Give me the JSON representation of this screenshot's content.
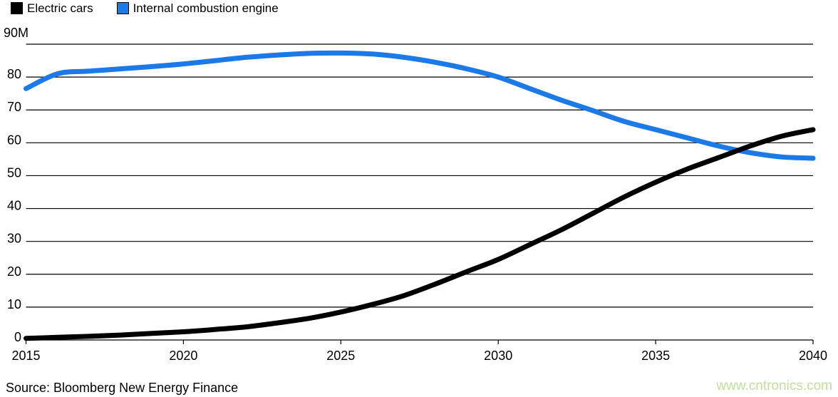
{
  "legend": {
    "items": [
      {
        "label": "Electric cars",
        "color": "#000000"
      },
      {
        "label": "Internal combustion engine",
        "color": "#1b79e8"
      }
    ]
  },
  "chart_data": {
    "type": "line",
    "title": "",
    "x": [
      2015,
      2016,
      2017,
      2018,
      2019,
      2020,
      2021,
      2022,
      2023,
      2024,
      2025,
      2026,
      2027,
      2028,
      2029,
      2030,
      2031,
      2032,
      2033,
      2034,
      2035,
      2036,
      2037,
      2038,
      2039,
      2040
    ],
    "series": [
      {
        "name": "Electric cars",
        "color": "#000000",
        "values": [
          0.5,
          0.8,
          1.1,
          1.5,
          2.0,
          2.5,
          3.2,
          4.0,
          5.2,
          6.6,
          8.5,
          10.8,
          13.5,
          17.0,
          20.8,
          24.5,
          29.0,
          33.5,
          38.5,
          43.5,
          48.0,
          52.0,
          55.5,
          59.0,
          62.0,
          64.0
        ]
      },
      {
        "name": "Internal combustion engine",
        "color": "#1b79e8",
        "values": [
          76.5,
          81.0,
          81.8,
          82.5,
          83.2,
          84.0,
          85.0,
          86.0,
          86.7,
          87.2,
          87.3,
          87.0,
          86.0,
          84.5,
          82.5,
          80.0,
          76.5,
          73.0,
          69.8,
          66.5,
          64.0,
          61.5,
          59.0,
          57.0,
          55.7,
          55.3
        ]
      }
    ],
    "xlim": [
      2015,
      2040
    ],
    "ylim": [
      0,
      90
    ],
    "x_ticks": [
      2015,
      2020,
      2025,
      2030,
      2035,
      2040
    ],
    "x_tick_labels": [
      "2015",
      "2020",
      "2025",
      "2030",
      "2035",
      "2040"
    ],
    "y_ticks": [
      0,
      10,
      20,
      30,
      40,
      50,
      60,
      70,
      80,
      90
    ],
    "y_tick_labels": [
      "0",
      "10",
      "20",
      "30",
      "40",
      "50",
      "60",
      "70",
      "80",
      "90M"
    ],
    "grid": true,
    "legend_position": "top-left"
  },
  "footer": {
    "source": "Source: Bloomberg New Energy Finance",
    "watermark": "www.cntronics.com",
    "watermark_color": "#c0e09c"
  }
}
